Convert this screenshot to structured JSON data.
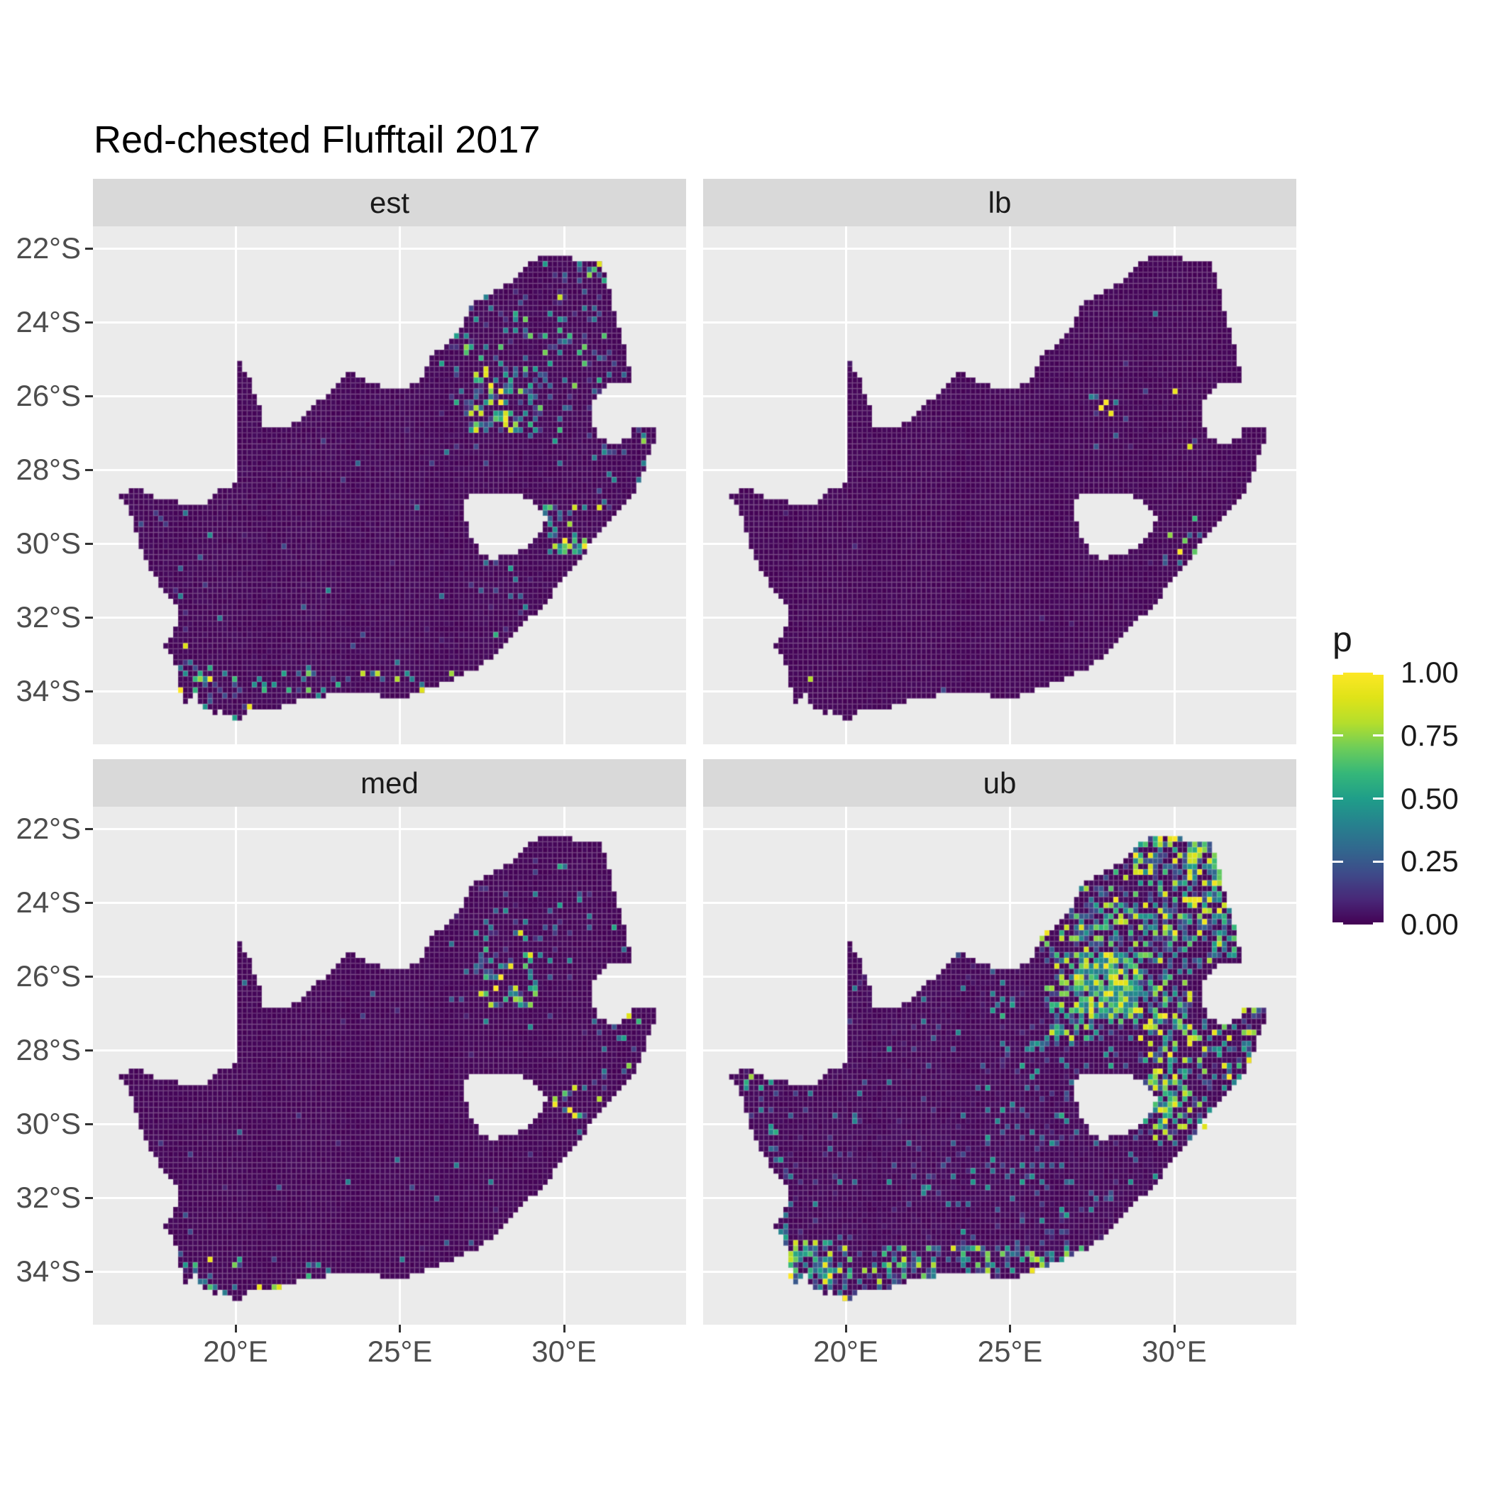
{
  "title": "Red-chested Flufftail 2017",
  "facets": [
    {
      "id": "est",
      "label": "est"
    },
    {
      "id": "lb",
      "label": "lb"
    },
    {
      "id": "med",
      "label": "med"
    },
    {
      "id": "ub",
      "label": "ub"
    }
  ],
  "axes": {
    "y_ticks": [
      {
        "label": "22°S",
        "deg": 22
      },
      {
        "label": "24°S",
        "deg": 24
      },
      {
        "label": "26°S",
        "deg": 26
      },
      {
        "label": "28°S",
        "deg": 28
      },
      {
        "label": "30°S",
        "deg": 30
      },
      {
        "label": "32°S",
        "deg": 32
      },
      {
        "label": "34°S",
        "deg": 34
      }
    ],
    "x_ticks": [
      {
        "label": "20°E",
        "deg": 20
      },
      {
        "label": "25°E",
        "deg": 25
      },
      {
        "label": "30°E",
        "deg": 30
      }
    ]
  },
  "legend": {
    "title": "p",
    "ticks": [
      {
        "label": "1.00",
        "value": 1.0
      },
      {
        "label": "0.75",
        "value": 0.75
      },
      {
        "label": "0.50",
        "value": 0.5
      },
      {
        "label": "0.25",
        "value": 0.25
      },
      {
        "label": "0.00",
        "value": 0.0
      }
    ]
  },
  "colors": {
    "page_bg": "#FFFFFF",
    "panel_bg": "#EBEBEB",
    "strip_bg": "#D9D9D9",
    "grid_line": "#FFFFFF",
    "axis_text": "#4D4D4D",
    "tick_mark": "#333333",
    "text": "#1A1A1A",
    "raster_base": "#440154",
    "cell_mesh": "rgba(255,255,255,0.14)",
    "viridis_stops": [
      [
        0.0,
        "#440154"
      ],
      [
        0.1,
        "#482878"
      ],
      [
        0.2,
        "#3E4A89"
      ],
      [
        0.3,
        "#31688E"
      ],
      [
        0.4,
        "#26828E"
      ],
      [
        0.5,
        "#1F9E89"
      ],
      [
        0.6,
        "#35B779"
      ],
      [
        0.7,
        "#6DCD59"
      ],
      [
        0.8,
        "#B4DE2C"
      ],
      [
        0.9,
        "#DFE318"
      ],
      [
        1.0,
        "#FDE725"
      ]
    ]
  },
  "chart_data": {
    "type": "heatmap",
    "subtype": "faceted-raster-map",
    "title": "Red-chested Flufftail 2017",
    "facet_values": [
      "est",
      "lb",
      "med",
      "ub"
    ],
    "value_name": "p",
    "value_range": [
      0,
      1
    ],
    "palette": "viridis",
    "legend_tick_values": [
      0.0,
      0.25,
      0.5,
      0.75,
      1.0
    ],
    "x_axis": {
      "ticks_deg_east": [
        20,
        25,
        30
      ],
      "tick_labels": [
        "20°E",
        "25°E",
        "30°E"
      ]
    },
    "y_axis": {
      "ticks_deg_south": [
        22,
        24,
        26,
        28,
        30,
        32,
        34
      ],
      "tick_labels": [
        "22°S",
        "24°S",
        "26°S",
        "28°S",
        "30°S",
        "32°S",
        "34°S"
      ]
    },
    "grid_major": {
      "x_every_deg": 5,
      "y_every_deg": 2,
      "minor": false
    },
    "map_region": "South Africa outline with Lesotho hole and Eswatini notch",
    "cell_size_deg": 0.15,
    "extent": {
      "lon_east": [
        15.7,
        33.7
      ],
      "lat": [
        -35.6,
        -21.4
      ]
    },
    "south_africa_outline": [
      [
        20.0,
        -24.77
      ],
      [
        20.45,
        -25.6
      ],
      [
        20.7,
        -26.2
      ],
      [
        20.85,
        -26.85
      ],
      [
        21.5,
        -26.85
      ],
      [
        22.05,
        -26.6
      ],
      [
        22.55,
        -26.15
      ],
      [
        22.9,
        -25.85
      ],
      [
        23.45,
        -25.3
      ],
      [
        24.0,
        -25.65
      ],
      [
        24.75,
        -25.8
      ],
      [
        25.4,
        -25.7
      ],
      [
        25.7,
        -25.45
      ],
      [
        26.0,
        -24.9
      ],
      [
        26.4,
        -24.6
      ],
      [
        26.85,
        -24.25
      ],
      [
        27.1,
        -23.6
      ],
      [
        27.75,
        -23.2
      ],
      [
        28.35,
        -22.9
      ],
      [
        28.9,
        -22.45
      ],
      [
        29.35,
        -22.15
      ],
      [
        29.9,
        -22.2
      ],
      [
        30.45,
        -22.3
      ],
      [
        31.1,
        -22.35
      ],
      [
        31.3,
        -22.85
      ],
      [
        31.5,
        -23.6
      ],
      [
        31.75,
        -24.3
      ],
      [
        31.95,
        -24.95
      ],
      [
        32.0,
        -25.6
      ],
      [
        31.4,
        -25.7
      ],
      [
        31.0,
        -25.95
      ],
      [
        30.85,
        -26.35
      ],
      [
        30.9,
        -26.8
      ],
      [
        31.15,
        -27.2
      ],
      [
        31.6,
        -27.3
      ],
      [
        31.97,
        -27.1
      ],
      [
        32.15,
        -26.85
      ],
      [
        32.9,
        -26.85
      ],
      [
        32.6,
        -27.6
      ],
      [
        32.25,
        -28.4
      ],
      [
        31.9,
        -28.9
      ],
      [
        31.25,
        -29.5
      ],
      [
        30.7,
        -30.15
      ],
      [
        30.25,
        -30.7
      ],
      [
        29.65,
        -31.35
      ],
      [
        29.1,
        -31.9
      ],
      [
        28.55,
        -32.35
      ],
      [
        27.9,
        -33.0
      ],
      [
        27.3,
        -33.4
      ],
      [
        26.45,
        -33.75
      ],
      [
        25.7,
        -33.95
      ],
      [
        25.65,
        -34.05
      ],
      [
        24.8,
        -34.2
      ],
      [
        23.6,
        -34.0
      ],
      [
        22.85,
        -34.1
      ],
      [
        22.15,
        -34.2
      ],
      [
        21.35,
        -34.45
      ],
      [
        20.5,
        -34.45
      ],
      [
        20.0,
        -34.82
      ],
      [
        19.6,
        -34.55
      ],
      [
        19.3,
        -34.62
      ],
      [
        18.95,
        -34.4
      ],
      [
        18.8,
        -34.08
      ],
      [
        18.45,
        -34.32
      ],
      [
        18.33,
        -33.92
      ],
      [
        18.25,
        -33.4
      ],
      [
        17.85,
        -32.8
      ],
      [
        18.28,
        -32.1
      ],
      [
        18.2,
        -31.7
      ],
      [
        17.6,
        -31.0
      ],
      [
        17.15,
        -30.2
      ],
      [
        16.9,
        -29.4
      ],
      [
        16.45,
        -28.6
      ],
      [
        17.1,
        -28.55
      ],
      [
        17.6,
        -28.75
      ],
      [
        18.3,
        -28.9
      ],
      [
        19.1,
        -28.9
      ],
      [
        19.6,
        -28.5
      ],
      [
        19.99,
        -28.42
      ]
    ],
    "lesotho_hole": [
      [
        27.05,
        -28.6
      ],
      [
        27.55,
        -28.65
      ],
      [
        28.15,
        -28.6
      ],
      [
        28.7,
        -28.7
      ],
      [
        29.2,
        -29.0
      ],
      [
        29.45,
        -29.35
      ],
      [
        29.3,
        -29.75
      ],
      [
        28.95,
        -30.05
      ],
      [
        28.35,
        -30.3
      ],
      [
        27.8,
        -30.4
      ],
      [
        27.4,
        -30.2
      ],
      [
        27.1,
        -29.7
      ],
      [
        26.95,
        -29.15
      ]
    ],
    "region_format": "[lonMin, lonMax, latNorth, latSouth, density, vMin, vMax]",
    "spot_format": "[lon, lat, p]",
    "facet_patterns": {
      "est": {
        "seed": 11,
        "base_noise": 0.025,
        "regions": [
          [
            26.9,
            29.3,
            -25.2,
            -27.0,
            0.32,
            0.15,
            1.0
          ],
          [
            26.0,
            30.2,
            -24.2,
            -27.6,
            0.1,
            0.08,
            0.6
          ],
          [
            27.0,
            32.2,
            -22.2,
            -25.2,
            0.1,
            0.1,
            0.75
          ],
          [
            30.4,
            31.6,
            -22.2,
            -22.9,
            0.28,
            0.2,
            0.95
          ],
          [
            29.8,
            32.3,
            -24.8,
            -27.3,
            0.09,
            0.1,
            0.8
          ],
          [
            29.4,
            30.9,
            -28.9,
            -30.3,
            0.22,
            0.15,
            1.0
          ],
          [
            30.7,
            32.5,
            -27.0,
            -29.2,
            0.1,
            0.15,
            0.8
          ],
          [
            27.5,
            30.5,
            -30.3,
            -33.2,
            0.05,
            0.1,
            0.6
          ],
          [
            18.2,
            27.2,
            -33.5,
            -35.0,
            0.11,
            0.15,
            0.85
          ],
          [
            18.2,
            19.3,
            -33.2,
            -34.6,
            0.22,
            0.2,
            1.0
          ],
          [
            16.4,
            18.6,
            -28.4,
            -33.4,
            0.035,
            0.1,
            0.5
          ],
          [
            16.4,
            33.0,
            -22.2,
            -35.0,
            0.013,
            0.05,
            0.45
          ]
        ],
        "spots": [
          [
            18.33,
            -33.95,
            1.0
          ],
          [
            18.45,
            -32.7,
            0.9
          ],
          [
            20.4,
            -34.42,
            0.95
          ],
          [
            25.6,
            -33.95,
            0.9
          ],
          [
            28.0,
            -26.15,
            1.0
          ],
          [
            28.15,
            -25.9,
            1.0
          ],
          [
            30.0,
            -29.85,
            1.0
          ],
          [
            31.0,
            -29.0,
            0.9
          ],
          [
            29.9,
            -23.3,
            0.85
          ],
          [
            31.1,
            -22.45,
            0.9
          ]
        ]
      },
      "lb": {
        "seed": 22,
        "base_noise": 0.02,
        "regions": [
          [
            27.3,
            28.7,
            -25.6,
            -26.8,
            0.1,
            0.1,
            1.0
          ],
          [
            26.8,
            29.3,
            -25.0,
            -27.4,
            0.04,
            0.05,
            0.3
          ],
          [
            29.7,
            30.9,
            -29.6,
            -30.8,
            0.1,
            0.2,
            1.0
          ],
          [
            21.8,
            23.6,
            -33.9,
            -34.5,
            0.05,
            0.2,
            0.5
          ],
          [
            16.4,
            33.0,
            -22.2,
            -35.0,
            0.0025,
            0.05,
            0.3
          ]
        ],
        "spots": [
          [
            27.85,
            -26.1,
            1.0
          ],
          [
            27.7,
            -26.35,
            1.0
          ],
          [
            28.05,
            -26.5,
            0.95
          ],
          [
            29.95,
            -25.9,
            0.95
          ],
          [
            30.5,
            -27.35,
            0.9
          ],
          [
            19.0,
            -33.6,
            0.8
          ],
          [
            30.15,
            -30.25,
            1.0
          ],
          [
            30.3,
            -29.9,
            0.7
          ],
          [
            29.4,
            -23.8,
            0.35
          ],
          [
            30.55,
            -29.3,
            0.6
          ]
        ]
      },
      "med": {
        "seed": 33,
        "base_noise": 0.02,
        "regions": [
          [
            27.2,
            29.2,
            -25.3,
            -26.9,
            0.2,
            0.12,
            1.0
          ],
          [
            26.5,
            30.3,
            -24.5,
            -27.5,
            0.06,
            0.08,
            0.5
          ],
          [
            27.5,
            32.0,
            -22.3,
            -25.3,
            0.055,
            0.1,
            0.6
          ],
          [
            29.6,
            30.9,
            -28.9,
            -30.4,
            0.18,
            0.15,
            1.0
          ],
          [
            30.8,
            32.5,
            -26.9,
            -29.3,
            0.08,
            0.15,
            0.8
          ],
          [
            18.3,
            27.0,
            -33.6,
            -35.0,
            0.08,
            0.15,
            0.85
          ],
          [
            18.3,
            19.3,
            -33.3,
            -34.6,
            0.12,
            0.2,
            0.8
          ],
          [
            16.4,
            33.0,
            -22.2,
            -35.0,
            0.008,
            0.05,
            0.4
          ]
        ],
        "spots": [
          [
            28.05,
            -26.0,
            1.0
          ],
          [
            27.9,
            -26.3,
            1.0
          ],
          [
            28.3,
            -25.75,
            0.95
          ],
          [
            28.6,
            -24.85,
            0.9
          ],
          [
            30.15,
            -29.6,
            1.0
          ],
          [
            30.3,
            -29.75,
            0.95
          ],
          [
            32.0,
            -27.05,
            0.9
          ],
          [
            20.7,
            -34.4,
            0.95
          ],
          [
            21.35,
            -34.4,
            0.9
          ],
          [
            19.2,
            -33.7,
            0.95
          ],
          [
            22.2,
            -34.1,
            0.6
          ],
          [
            31.15,
            -29.35,
            0.8
          ]
        ]
      },
      "ub": {
        "seed": 44,
        "base_noise": 0.03,
        "regions": [
          [
            27.0,
            29.1,
            -25.3,
            -27.1,
            0.8,
            0.35,
            1.0
          ],
          [
            26.0,
            30.5,
            -24.0,
            -27.8,
            0.35,
            0.15,
            0.95
          ],
          [
            25.0,
            32.3,
            -22.2,
            -25.0,
            0.3,
            0.15,
            1.0
          ],
          [
            28.8,
            32.0,
            -22.2,
            -23.3,
            0.45,
            0.2,
            1.0
          ],
          [
            30.3,
            32.2,
            -23.3,
            -25.6,
            0.35,
            0.2,
            1.0
          ],
          [
            29.0,
            32.6,
            -26.8,
            -30.6,
            0.28,
            0.15,
            1.0
          ],
          [
            29.2,
            30.5,
            -28.2,
            -30.2,
            0.45,
            0.25,
            1.0
          ],
          [
            24.5,
            29.5,
            -26.5,
            -30.5,
            0.1,
            0.08,
            0.6
          ],
          [
            18.3,
            27.3,
            -33.3,
            -35.0,
            0.38,
            0.15,
            0.9
          ],
          [
            18.2,
            19.6,
            -33.2,
            -34.7,
            0.5,
            0.2,
            1.0
          ],
          [
            17.2,
            18.7,
            -29.5,
            -33.3,
            0.12,
            0.1,
            0.6
          ],
          [
            16.4,
            18.3,
            -28.3,
            -29.6,
            0.18,
            0.15,
            0.9
          ],
          [
            22.0,
            27.0,
            -30.5,
            -33.5,
            0.09,
            0.08,
            0.5
          ],
          [
            16.4,
            33.0,
            -22.2,
            -35.0,
            0.05,
            0.04,
            0.5
          ]
        ],
        "spots": [
          [
            20.0,
            -34.78,
            1.0
          ],
          [
            18.4,
            -34.1,
            1.0
          ],
          [
            25.65,
            -34.0,
            0.95
          ],
          [
            31.6,
            -28.7,
            1.0
          ],
          [
            32.3,
            -28.3,
            0.95
          ],
          [
            30.9,
            -30.0,
            0.9
          ]
        ]
      }
    }
  }
}
